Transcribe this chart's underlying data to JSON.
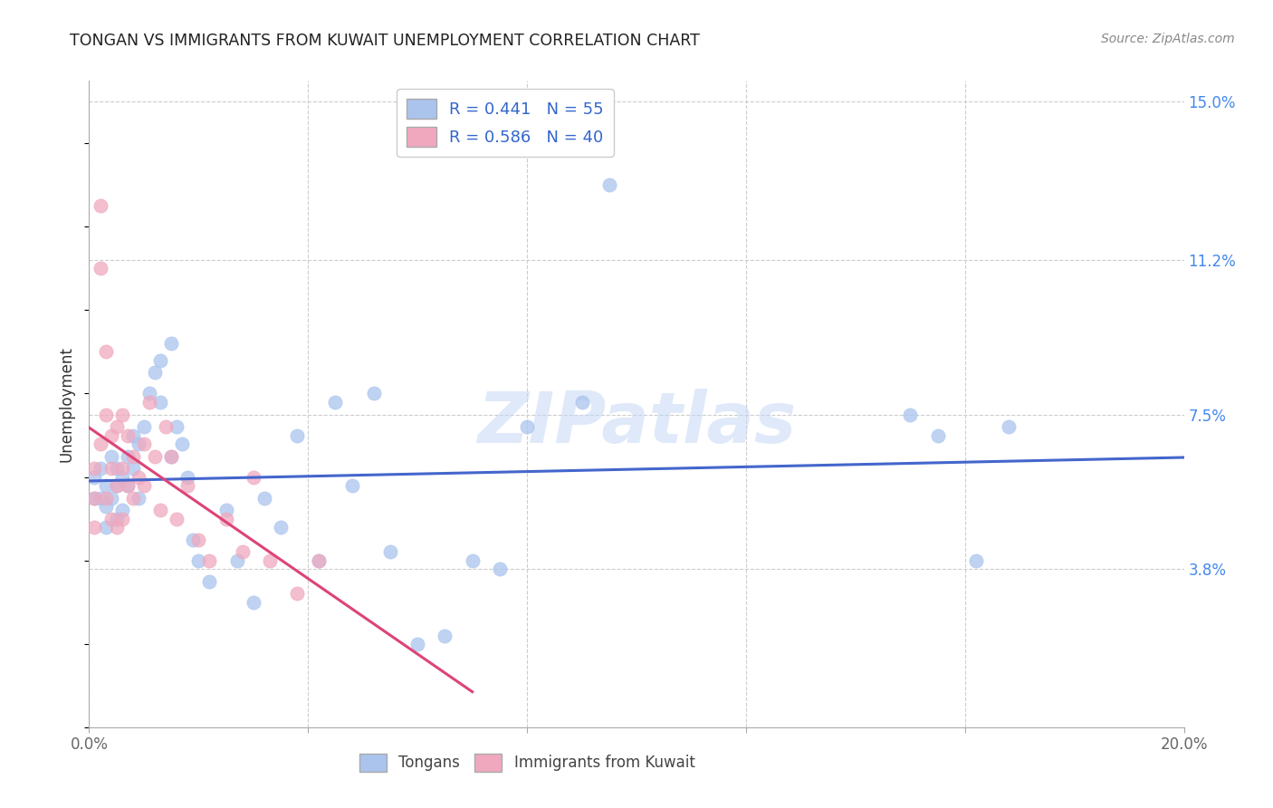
{
  "title": "TONGAN VS IMMIGRANTS FROM KUWAIT UNEMPLOYMENT CORRELATION CHART",
  "source": "Source: ZipAtlas.com",
  "ylabel": "Unemployment",
  "xlim": [
    0.0,
    0.2
  ],
  "ylim": [
    0.0,
    0.155
  ],
  "ytick_positions": [
    0.038,
    0.075,
    0.112,
    0.15
  ],
  "ytick_labels": [
    "3.8%",
    "7.5%",
    "11.2%",
    "15.0%"
  ],
  "background_color": "#ffffff",
  "grid_color": "#cccccc",
  "watermark": "ZIPatlas",
  "legend_R1": "R = 0.441",
  "legend_N1": "N = 55",
  "legend_R2": "R = 0.586",
  "legend_N2": "N = 40",
  "color_tongans": "#aac4ee",
  "color_kuwait": "#f0a8be",
  "line_color_tongans": "#4466cc",
  "line_color_kuwait": "#dd4477",
  "tongans_x": [
    0.001,
    0.001,
    0.002,
    0.002,
    0.003,
    0.003,
    0.003,
    0.004,
    0.004,
    0.005,
    0.005,
    0.005,
    0.006,
    0.006,
    0.007,
    0.007,
    0.008,
    0.008,
    0.009,
    0.009,
    0.01,
    0.011,
    0.012,
    0.013,
    0.013,
    0.015,
    0.015,
    0.016,
    0.017,
    0.018,
    0.019,
    0.02,
    0.022,
    0.025,
    0.027,
    0.03,
    0.032,
    0.035,
    0.038,
    0.042,
    0.045,
    0.048,
    0.052,
    0.055,
    0.06,
    0.065,
    0.07,
    0.075,
    0.08,
    0.09,
    0.095,
    0.15,
    0.155,
    0.162,
    0.168
  ],
  "tongans_y": [
    0.06,
    0.055,
    0.062,
    0.055,
    0.058,
    0.053,
    0.048,
    0.065,
    0.055,
    0.062,
    0.058,
    0.05,
    0.06,
    0.052,
    0.065,
    0.058,
    0.07,
    0.062,
    0.068,
    0.055,
    0.072,
    0.08,
    0.085,
    0.088,
    0.078,
    0.092,
    0.065,
    0.072,
    0.068,
    0.06,
    0.045,
    0.04,
    0.035,
    0.052,
    0.04,
    0.03,
    0.055,
    0.048,
    0.07,
    0.04,
    0.078,
    0.058,
    0.08,
    0.042,
    0.02,
    0.022,
    0.04,
    0.038,
    0.072,
    0.078,
    0.13,
    0.075,
    0.07,
    0.04,
    0.072
  ],
  "kuwait_x": [
    0.001,
    0.001,
    0.001,
    0.002,
    0.002,
    0.002,
    0.003,
    0.003,
    0.003,
    0.004,
    0.004,
    0.004,
    0.005,
    0.005,
    0.005,
    0.006,
    0.006,
    0.006,
    0.007,
    0.007,
    0.008,
    0.008,
    0.009,
    0.01,
    0.01,
    0.011,
    0.012,
    0.013,
    0.014,
    0.015,
    0.016,
    0.018,
    0.02,
    0.022,
    0.025,
    0.028,
    0.03,
    0.033,
    0.038,
    0.042
  ],
  "kuwait_y": [
    0.062,
    0.055,
    0.048,
    0.125,
    0.11,
    0.068,
    0.09,
    0.075,
    0.055,
    0.07,
    0.062,
    0.05,
    0.072,
    0.058,
    0.048,
    0.075,
    0.062,
    0.05,
    0.07,
    0.058,
    0.065,
    0.055,
    0.06,
    0.068,
    0.058,
    0.078,
    0.065,
    0.052,
    0.072,
    0.065,
    0.05,
    0.058,
    0.045,
    0.04,
    0.05,
    0.042,
    0.06,
    0.04,
    0.032,
    0.04
  ]
}
